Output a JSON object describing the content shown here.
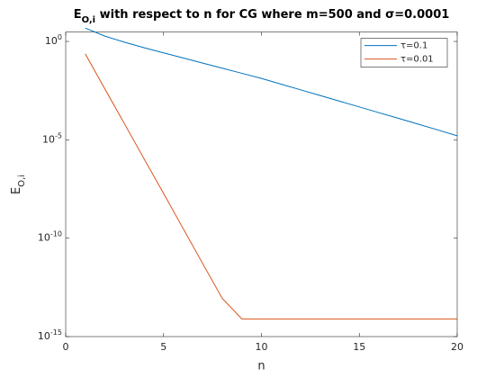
{
  "chart_data": {
    "type": "line",
    "title": [
      "E",
      "O,i",
      " with respect to n for CG where m=500 and σ=0.0001"
    ],
    "xlabel": "n",
    "ylabel": [
      "E",
      "O,i"
    ],
    "x": [
      1,
      2,
      3,
      4,
      5,
      6,
      7,
      8,
      9,
      10,
      11,
      12,
      13,
      14,
      15,
      16,
      17,
      18,
      19,
      20
    ],
    "series": [
      {
        "name": "τ=0.1",
        "color": "#0072bd",
        "values": [
          4.79,
          1.86,
          0.912,
          0.479,
          0.263,
          0.145,
          0.0794,
          0.0437,
          0.024,
          0.0132,
          0.00676,
          0.00347,
          0.00178,
          0.00091,
          0.00047,
          0.00024,
          0.000123,
          6.3e-05,
          3.2e-05,
          1.6e-05
        ]
      },
      {
        "name": "τ=0.01",
        "color": "#d95319",
        "values": [
          0.234,
          0.0039,
          6.6e-05,
          1.1e-06,
          1.9e-08,
          3.1e-10,
          5.1e-12,
          8.7e-14,
          7.9e-15,
          7.9e-15,
          7.9e-15,
          7.9e-15,
          7.9e-15,
          7.9e-15,
          7.9e-15,
          7.9e-15,
          7.9e-15,
          7.9e-15,
          7.9e-15,
          7.9e-15
        ]
      }
    ],
    "xlim": [
      0,
      20
    ],
    "xticks": [
      0,
      5,
      10,
      15,
      20
    ],
    "ylim": [
      1e-15,
      3
    ],
    "ylog": true,
    "yticks": [
      {
        "value": 1e-15,
        "label": "10^-15"
      },
      {
        "value": 1e-10,
        "label": "10^-10"
      },
      {
        "value": 1e-05,
        "label": "10^-5"
      },
      {
        "value": 1,
        "label": "10^0"
      }
    ],
    "legend": "upper right"
  }
}
